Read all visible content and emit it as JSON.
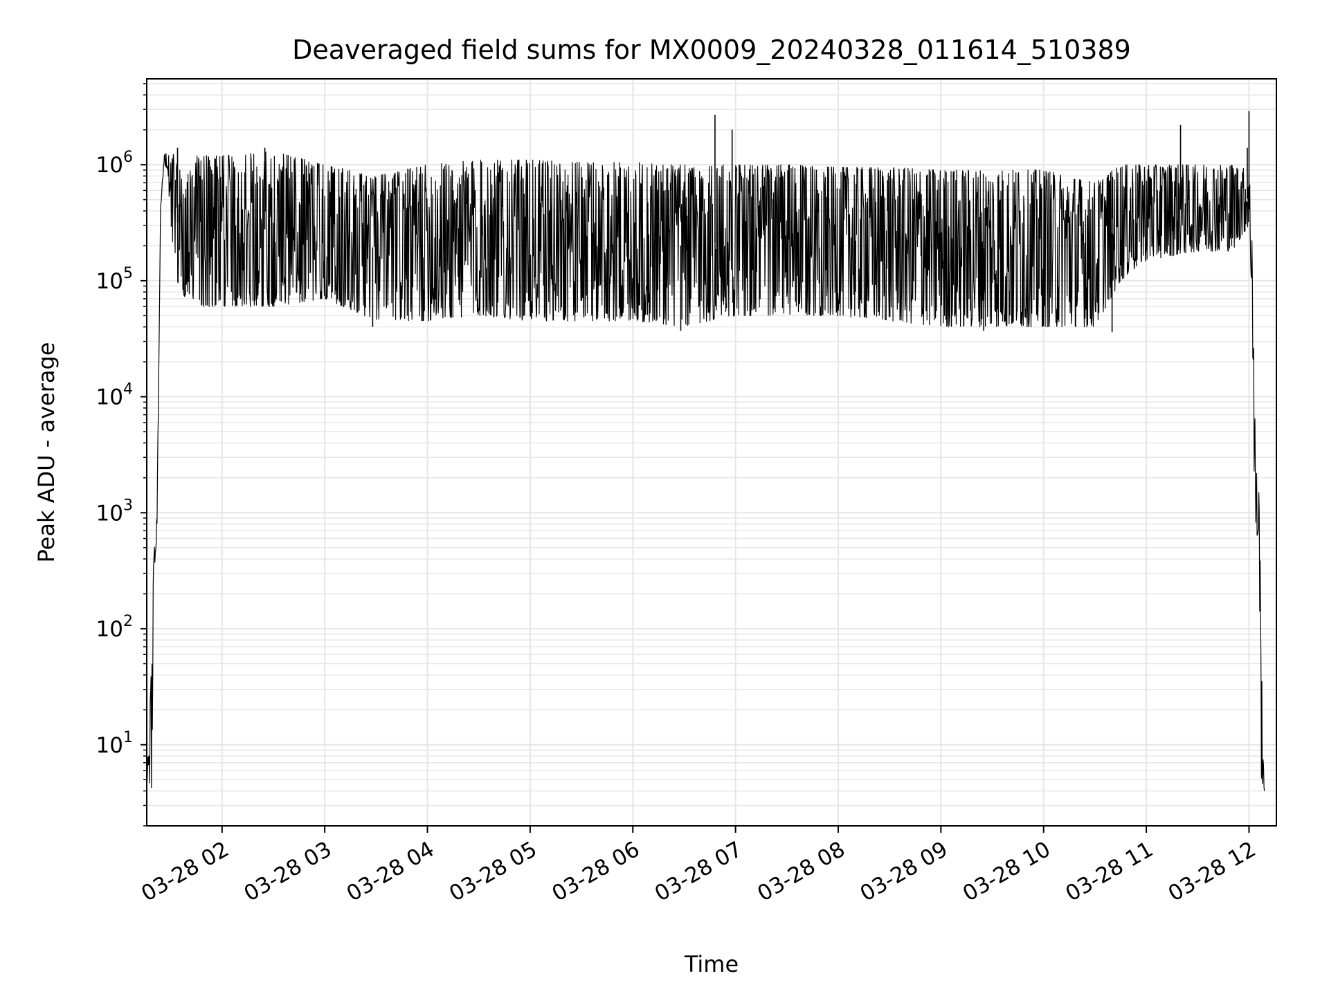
{
  "chart_data": {
    "type": "line",
    "title": "Deaveraged field sums for MX0009_20240328_011614_510389",
    "xlabel": "Time",
    "ylabel": "Peak ADU - average",
    "yscale": "log",
    "ylim": [
      2,
      5500000
    ],
    "xlim": [
      "03-28 01:16",
      "03-28 12:16"
    ],
    "grid": true,
    "line_color": "#000000",
    "grid_color": "#e6e6e6",
    "x_ticks": [
      {
        "t": "03-28 02:00",
        "label": "03-28 02"
      },
      {
        "t": "03-28 03:00",
        "label": "03-28 03"
      },
      {
        "t": "03-28 04:00",
        "label": "03-28 04"
      },
      {
        "t": "03-28 05:00",
        "label": "03-28 05"
      },
      {
        "t": "03-28 06:00",
        "label": "03-28 06"
      },
      {
        "t": "03-28 07:00",
        "label": "03-28 07"
      },
      {
        "t": "03-28 08:00",
        "label": "03-28 08"
      },
      {
        "t": "03-28 09:00",
        "label": "03-28 09"
      },
      {
        "t": "03-28 10:00",
        "label": "03-28 10"
      },
      {
        "t": "03-28 11:00",
        "label": "03-28 11"
      },
      {
        "t": "03-28 12:00",
        "label": "03-28 12"
      }
    ],
    "y_ticks": [
      {
        "value": 10,
        "base": "10",
        "exp": "1"
      },
      {
        "value": 100,
        "base": "10",
        "exp": "2"
      },
      {
        "value": 1000,
        "base": "10",
        "exp": "3"
      },
      {
        "value": 10000,
        "base": "10",
        "exp": "4"
      },
      {
        "value": 100000,
        "base": "10",
        "exp": "5"
      },
      {
        "value": 1000000,
        "base": "10",
        "exp": "6"
      }
    ],
    "series": [
      {
        "envelope": [
          [
            "03-28 01:16",
            4,
            4
          ],
          [
            "03-28 01:19",
            4,
            60
          ],
          [
            "03-28 01:20",
            250,
            400
          ],
          [
            "03-28 01:22",
            700,
            1000
          ],
          [
            "03-28 01:24",
            300000,
            400000
          ],
          [
            "03-28 01:26",
            1000000,
            1200000
          ],
          [
            "03-28 01:28",
            900000,
            1300000
          ],
          [
            "03-28 01:31",
            200000,
            1300000
          ],
          [
            "03-28 01:35",
            80000,
            900000
          ],
          [
            "03-28 01:45",
            60000,
            1200000
          ],
          [
            "03-28 02:00",
            60000,
            1200000
          ],
          [
            "03-28 02:30",
            60000,
            1300000
          ],
          [
            "03-28 03:00",
            70000,
            1000000
          ],
          [
            "03-28 03:30",
            45000,
            800000
          ],
          [
            "03-28 04:00",
            45000,
            1000000
          ],
          [
            "03-28 04:30",
            50000,
            1100000
          ],
          [
            "03-28 05:00",
            45000,
            1100000
          ],
          [
            "03-28 05:30",
            45000,
            1050000
          ],
          [
            "03-28 06:00",
            45000,
            1050000
          ],
          [
            "03-28 06:30",
            40000,
            1000000
          ],
          [
            "03-28 07:00",
            50000,
            1000000
          ],
          [
            "03-28 07:30",
            50000,
            1000000
          ],
          [
            "03-28 08:00",
            50000,
            950000
          ],
          [
            "03-28 08:30",
            45000,
            950000
          ],
          [
            "03-28 09:00",
            40000,
            900000
          ],
          [
            "03-28 09:30",
            40000,
            900000
          ],
          [
            "03-28 10:00",
            40000,
            900000
          ],
          [
            "03-28 10:30",
            40000,
            700000
          ],
          [
            "03-28 10:45",
            100000,
            1000000
          ],
          [
            "03-28 11:00",
            150000,
            1000000
          ],
          [
            "03-28 11:30",
            180000,
            1000000
          ],
          [
            "03-28 11:50",
            180000,
            1000000
          ],
          [
            "03-28 12:00",
            300000,
            900000
          ],
          [
            "03-28 12:02",
            50000,
            300000
          ],
          [
            "03-28 12:03",
            1000,
            20000
          ],
          [
            "03-28 12:04",
            700,
            2500
          ],
          [
            "03-28 12:06",
            400,
            1500
          ],
          [
            "03-28 12:07",
            5,
            100
          ],
          [
            "03-28 12:09",
            4,
            4
          ]
        ],
        "spikes": [
          [
            "03-28 06:48",
            2700000
          ],
          [
            "03-28 06:58",
            2000000
          ],
          [
            "03-28 11:20",
            2200000
          ],
          [
            "03-28 12:00",
            2900000
          ],
          [
            "03-28 01:34",
            1400000
          ],
          [
            "03-28 02:25",
            1400000
          ],
          [
            "03-28 11:59",
            1400000
          ],
          [
            "03-28 03:28",
            40000
          ],
          [
            "03-28 06:28",
            37000
          ],
          [
            "03-28 09:25",
            37000
          ],
          [
            "03-28 10:40",
            36000
          ]
        ]
      }
    ]
  }
}
